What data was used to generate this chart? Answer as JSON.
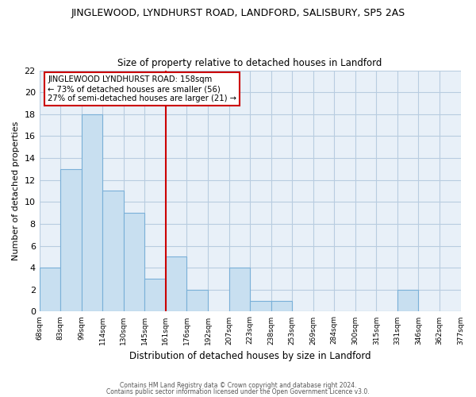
{
  "title": "JINGLEWOOD, LYNDHURST ROAD, LANDFORD, SALISBURY, SP5 2AS",
  "subtitle": "Size of property relative to detached houses in Landford",
  "xlabel": "Distribution of detached houses by size in Landford",
  "ylabel": "Number of detached properties",
  "bar_color": "#c8dff0",
  "bar_edge_color": "#7ab0d8",
  "background_color": "#ffffff",
  "plot_bg_color": "#e8f0f8",
  "grid_color": "#b8cce0",
  "bin_labels": [
    "68sqm",
    "83sqm",
    "99sqm",
    "114sqm",
    "130sqm",
    "145sqm",
    "161sqm",
    "176sqm",
    "192sqm",
    "207sqm",
    "223sqm",
    "238sqm",
    "253sqm",
    "269sqm",
    "284sqm",
    "300sqm",
    "315sqm",
    "331sqm",
    "346sqm",
    "362sqm",
    "377sqm"
  ],
  "bar_heights": [
    4,
    13,
    18,
    11,
    9,
    3,
    5,
    2,
    0,
    4,
    1,
    1,
    0,
    0,
    0,
    0,
    0,
    2,
    0,
    0
  ],
  "vline_x": 6,
  "vline_color": "#cc0000",
  "annotation_title": "JINGLEWOOD LYNDHURST ROAD: 158sqm",
  "annotation_line1": "← 73% of detached houses are smaller (56)",
  "annotation_line2": "27% of semi-detached houses are larger (21) →",
  "annotation_box_color": "#ffffff",
  "annotation_box_edge": "#cc0000",
  "ylim": [
    0,
    22
  ],
  "yticks": [
    0,
    2,
    4,
    6,
    8,
    10,
    12,
    14,
    16,
    18,
    20,
    22
  ],
  "footer1": "Contains HM Land Registry data © Crown copyright and database right 2024.",
  "footer2": "Contains public sector information licensed under the Open Government Licence v3.0."
}
